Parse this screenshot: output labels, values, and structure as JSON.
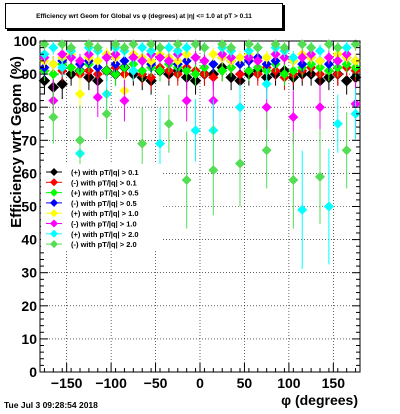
{
  "title": "Efficiency wrt Geom for Global vs φ (degrees) at |η| <= 1.0 at pT > 0.11",
  "timestamp": "Tue Jul  3 09:28:54 2018",
  "chart_data": {
    "type": "scatter",
    "title": "Efficiency wrt Geom for Global vs φ (degrees) at |η| <= 1.0 at pT > 0.11",
    "xlabel": "φ (degrees)",
    "ylabel": "Efficiency wrt Geom (%)",
    "xlim": [
      -180,
      180
    ],
    "ylim": [
      0,
      100
    ],
    "xticks": [
      -150,
      -100,
      -50,
      0,
      50,
      100,
      150
    ],
    "xtick_labels": [
      "−150",
      "−100",
      "−50",
      "0",
      "50",
      "100",
      "150"
    ],
    "yticks": [
      0,
      10,
      20,
      30,
      40,
      50,
      60,
      70,
      80,
      90,
      100
    ],
    "grid": true,
    "legend_position": "center-left",
    "series": [
      {
        "name": "(+) with pT/|q| > 0.1",
        "color": "#000000",
        "x": [
          -175,
          -165,
          -155,
          -145,
          -135,
          -125,
          -115,
          -105,
          -95,
          -85,
          -75,
          -65,
          -55,
          -45,
          -35,
          -25,
          -15,
          -5,
          5,
          15,
          25,
          35,
          45,
          55,
          65,
          75,
          85,
          95,
          105,
          115,
          125,
          135,
          145,
          155,
          165,
          175
        ],
        "y": [
          88,
          86,
          87,
          90,
          91,
          89,
          88,
          91,
          90,
          92,
          90,
          89,
          88,
          91,
          90,
          91,
          89,
          88,
          90,
          90,
          92,
          89,
          88,
          90,
          91,
          89,
          90,
          91,
          89,
          90,
          90,
          88,
          89,
          90,
          88,
          89
        ]
      },
      {
        "name": "(-) with pT/|q| > 0.1",
        "color": "#ff0000",
        "x": [
          -175,
          -165,
          -155,
          -145,
          -135,
          -125,
          -115,
          -105,
          -95,
          -85,
          -75,
          -65,
          -55,
          -45,
          -35,
          -25,
          -15,
          -5,
          5,
          15,
          25,
          35,
          45,
          55,
          65,
          75,
          85,
          95,
          105,
          115,
          125,
          135,
          145,
          155,
          165,
          175
        ],
        "y": [
          91,
          90,
          91,
          92,
          90,
          91,
          90,
          91,
          92,
          90,
          91,
          90,
          89,
          92,
          91,
          90,
          92,
          91,
          90,
          89,
          91,
          92,
          90,
          91,
          90,
          92,
          91,
          89,
          90,
          91,
          92,
          90,
          91,
          90,
          92,
          91
        ]
      },
      {
        "name": "(+) with pT/|q| > 0.5",
        "color": "#00ff00",
        "x": [
          -175,
          -165,
          -155,
          -145,
          -135,
          -125,
          -115,
          -105,
          -95,
          -85,
          -75,
          -65,
          -55,
          -45,
          -35,
          -25,
          -15,
          -5,
          5,
          15,
          25,
          35,
          45,
          55,
          65,
          75,
          85,
          95,
          105,
          115,
          125,
          135,
          145,
          155,
          165,
          175
        ],
        "y": [
          91,
          90,
          93,
          92,
          91,
          93,
          92,
          91,
          90,
          92,
          93,
          91,
          92,
          91,
          93,
          92,
          91,
          90,
          92,
          93,
          91,
          92,
          93,
          91,
          92,
          91,
          93,
          90,
          91,
          92,
          93,
          92,
          91,
          92,
          93,
          92
        ]
      },
      {
        "name": "(-) with pT/|q| > 0.5",
        "color": "#0000ff",
        "x": [
          -175,
          -165,
          -155,
          -145,
          -135,
          -125,
          -115,
          -105,
          -95,
          -85,
          -75,
          -65,
          -55,
          -45,
          -35,
          -25,
          -15,
          -5,
          5,
          15,
          25,
          35,
          45,
          55,
          65,
          75,
          85,
          95,
          105,
          115,
          125,
          135,
          145,
          155,
          165,
          175
        ],
        "y": [
          92,
          93,
          94,
          95,
          93,
          94,
          92,
          95,
          93,
          94,
          95,
          94,
          93,
          95,
          94,
          93,
          94,
          95,
          94,
          93,
          95,
          94,
          93,
          94,
          95,
          93,
          94,
          95,
          94,
          93,
          95,
          94,
          93,
          94,
          95,
          94
        ]
      },
      {
        "name": "(+) with pT/|q| > 1.0",
        "color": "#ffff00",
        "x": [
          -175,
          -165,
          -155,
          -145,
          -135,
          -125,
          -115,
          -105,
          -95,
          -85,
          -75,
          -65,
          -55,
          -45,
          -35,
          -25,
          -15,
          -5,
          5,
          15,
          25,
          35,
          45,
          55,
          65,
          75,
          85,
          95,
          105,
          115,
          125,
          135,
          145,
          155,
          165,
          175
        ],
        "y": [
          94,
          93,
          95,
          96,
          84,
          95,
          94,
          96,
          95,
          85,
          96,
          95,
          94,
          96,
          95,
          94,
          96,
          95,
          94,
          96,
          95,
          94,
          95,
          96,
          94,
          95,
          96,
          95,
          94,
          96,
          95,
          94,
          95,
          96,
          95,
          94
        ]
      },
      {
        "name": "(-) with pT/|q| > 1.0",
        "color": "#ff00ff",
        "x": [
          -175,
          -165,
          -155,
          -145,
          -135,
          -125,
          -115,
          -105,
          -95,
          -85,
          -75,
          -65,
          -55,
          -45,
          -35,
          -25,
          -15,
          -5,
          5,
          15,
          25,
          35,
          45,
          55,
          65,
          75,
          85,
          95,
          105,
          115,
          125,
          135,
          145,
          155,
          165,
          175
        ],
        "y": [
          95,
          82,
          96,
          95,
          94,
          96,
          83,
          95,
          96,
          82,
          95,
          94,
          96,
          95,
          94,
          96,
          82,
          95,
          94,
          82,
          96,
          95,
          80,
          95,
          94,
          80,
          96,
          95,
          77,
          95,
          96,
          80,
          95,
          94,
          96,
          81
        ]
      },
      {
        "name": "(+) with pT/|q| > 2.0",
        "color": "#00ffff",
        "x": [
          -175,
          -165,
          -155,
          -145,
          -135,
          -125,
          -115,
          -105,
          -95,
          -85,
          -75,
          -65,
          -55,
          -45,
          -35,
          -25,
          -15,
          -5,
          5,
          15,
          25,
          35,
          45,
          55,
          65,
          75,
          85,
          95,
          105,
          115,
          125,
          135,
          145,
          155,
          165,
          175
        ],
        "y": [
          96,
          98,
          92,
          97,
          66,
          98,
          97,
          84,
          98,
          97,
          91,
          98,
          97,
          69,
          98,
          97,
          98,
          73,
          98,
          73,
          98,
          97,
          80,
          97,
          98,
          87,
          98,
          97,
          95,
          49,
          98,
          97,
          50,
          75,
          98,
          78
        ]
      },
      {
        "name": "(-) with pT/|q| > 2.0",
        "color": "#55dd55",
        "x": [
          -175,
          -165,
          -155,
          -145,
          -135,
          -125,
          -115,
          -105,
          -95,
          -85,
          -75,
          -65,
          -55,
          -45,
          -35,
          -25,
          -15,
          -5,
          5,
          15,
          25,
          35,
          45,
          55,
          65,
          75,
          85,
          95,
          105,
          115,
          125,
          135,
          145,
          155,
          165,
          175
        ],
        "y": [
          99,
          77,
          99,
          98,
          70,
          99,
          98,
          78,
          99,
          98,
          99,
          69,
          99,
          98,
          75,
          99,
          58,
          99,
          98,
          61,
          99,
          98,
          63,
          99,
          98,
          67,
          99,
          98,
          58,
          99,
          98,
          59,
          99,
          98,
          67,
          99
        ]
      }
    ]
  }
}
